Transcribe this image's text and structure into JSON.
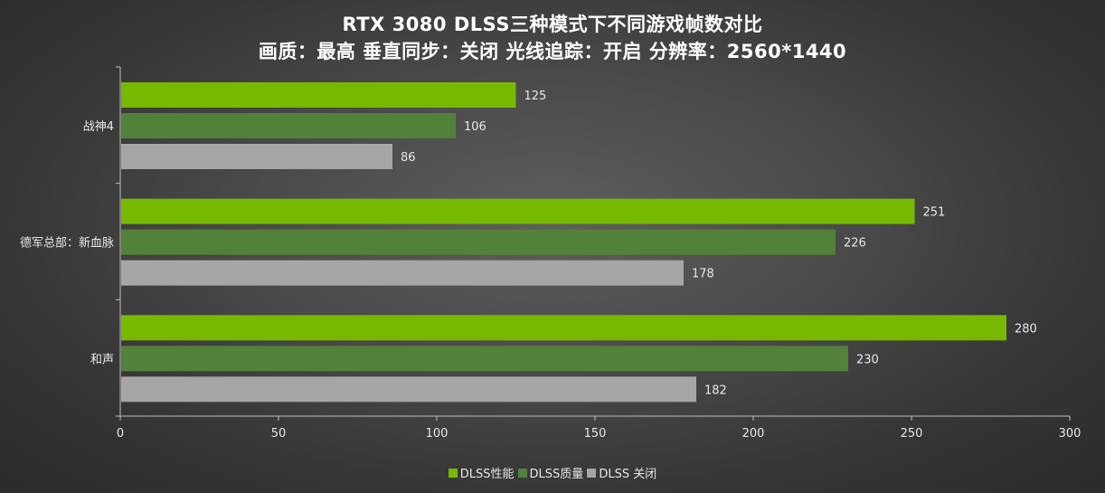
{
  "colors": {
    "dlss_performance": "#76b900",
    "dlss_quality": "#52813a",
    "dlss_off": "#a6a6a6",
    "axis_line": "#bfbfbf",
    "text": "#e8e8e8"
  },
  "chart_data": {
    "type": "bar",
    "orientation": "horizontal",
    "title": "RTX 3080 DLSS三种模式下不同游戏帧数对比",
    "subtitle": "画质：最高 垂直同步：关闭 光线追踪：开启 分辨率：2560*1440",
    "categories": [
      "战神4",
      "德军总部：新血脉",
      "和声"
    ],
    "series": [
      {
        "name": "DLSS性能",
        "values": [
          125,
          251,
          280
        ]
      },
      {
        "name": "DLSS质量",
        "values": [
          106,
          226,
          230
        ]
      },
      {
        "name": "DLSS 关闭",
        "values": [
          86,
          178,
          182
        ]
      }
    ],
    "xlim": [
      0,
      300
    ],
    "xticks": [
      "0",
      "50",
      "100",
      "150",
      "200",
      "250",
      "300"
    ],
    "grid": false,
    "legend_position": "bottom"
  }
}
